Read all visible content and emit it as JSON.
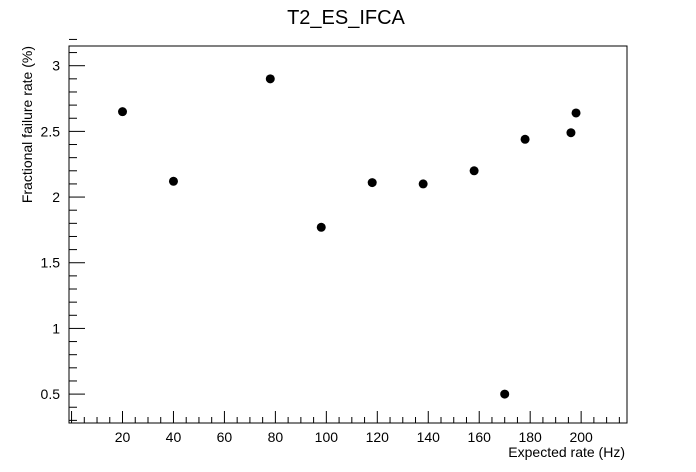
{
  "chart_data": {
    "type": "scatter",
    "title": "T2_ES_IFCA",
    "xlabel": "Expected rate (Hz)",
    "ylabel": "Fractional failure rate (%)",
    "xlim": [
      -1,
      218
    ],
    "ylim": [
      0.28,
      3.15
    ],
    "x_ticks": [
      20,
      40,
      60,
      80,
      100,
      120,
      140,
      160,
      180,
      200
    ],
    "y_ticks": [
      0.5,
      1,
      1.5,
      2,
      2.5,
      3
    ],
    "x_tick_labels": [
      "20",
      "40",
      "60",
      "80",
      "100",
      "120",
      "140",
      "160",
      "180",
      "200"
    ],
    "y_tick_labels": [
      "0.5",
      "1",
      "1.5",
      "2",
      "2.5",
      "3"
    ],
    "grid": false,
    "marker_color": "#000000",
    "series": [
      {
        "x": [
          20,
          40,
          78,
          98,
          118,
          138,
          158,
          170,
          178,
          196,
          198
        ],
        "y": [
          2.65,
          2.12,
          2.9,
          1.77,
          2.11,
          2.1,
          2.2,
          0.5,
          2.44,
          2.49,
          2.64
        ]
      }
    ]
  }
}
